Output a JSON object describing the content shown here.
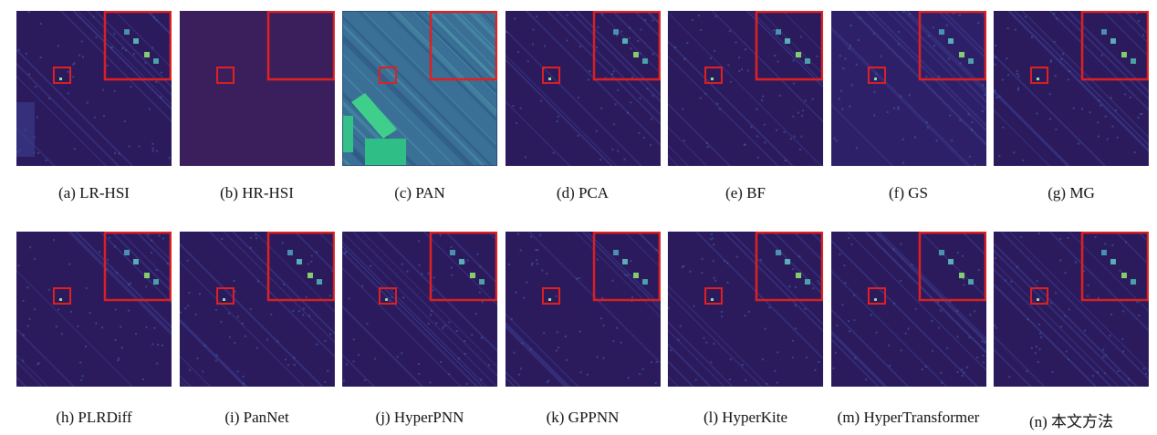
{
  "panels": [
    {
      "label": "(a) LR-HSI"
    },
    {
      "label": "(b) HR-HSI"
    },
    {
      "label": "(c) PAN"
    },
    {
      "label": "(d) PCA"
    },
    {
      "label": "(e) BF"
    },
    {
      "label": "(f) GS"
    },
    {
      "label": "(g) MG"
    },
    {
      "label": "(h) PLRDiff"
    },
    {
      "label": "(i) PanNet"
    },
    {
      "label": "(j) HyperPNN"
    },
    {
      "label": "(k) GPPNN"
    },
    {
      "label": "(l) HyperKite"
    },
    {
      "label": "(m) HyperTransformer"
    },
    {
      "label": "(n) 本文方法"
    }
  ]
}
